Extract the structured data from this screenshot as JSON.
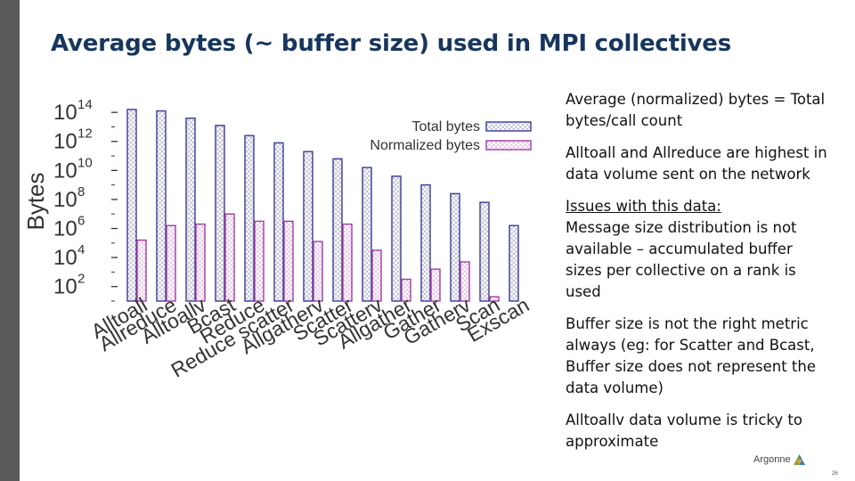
{
  "slide": {
    "title": "Average bytes (~ buffer size) used in MPI collectives",
    "bullets": {
      "b1": "Average (normalized) bytes = Total bytes/call count",
      "b2": "Alltoall and Allreduce are highest in data volume sent on the network",
      "b3_head": "Issues with this data:",
      "b3_body": "Message size distribution is not available – accumulated buffer sizes per collective on a rank is used",
      "b4": "Buffer size is not  the right metric always (eg: for Scatter and Bcast, Buffer size does not represent the data volume)",
      "b5": "Alltoallv data volume is tricky to approximate"
    },
    "logo_text": "Argonne",
    "page_number": "26"
  },
  "colors": {
    "total": "#3a3a99",
    "normalized": "#a23aa2"
  },
  "chart_data": {
    "type": "bar",
    "ylabel": "Bytes",
    "yscale": "log",
    "ylim_exp": [
      1,
      14.5
    ],
    "ytick_exponents": [
      2,
      4,
      6,
      8,
      10,
      12,
      14
    ],
    "categories": [
      "Alltoall",
      "Allreduce",
      "Alltoallv",
      "Bcast",
      "Reduce",
      "Reduce_scatter",
      "Allgatherv",
      "Scatter",
      "Scatterv",
      "Allgather",
      "Gather",
      "Gatherv",
      "Scan",
      "Exscan"
    ],
    "category_labels": [
      "Alltoall",
      "Allreduce",
      "Alltoallv",
      "Bcast",
      "Reduce",
      "Reduce scatter",
      "Allgatherv",
      "Scatter",
      "Scatterv",
      "Allgather",
      "Gather",
      "Gatherv",
      "Scan",
      "Exscan"
    ],
    "series": [
      {
        "name": "Total bytes",
        "exponents": [
          14.2,
          14.1,
          13.6,
          13.1,
          12.4,
          11.9,
          11.3,
          10.8,
          10.2,
          9.6,
          9.0,
          8.4,
          7.8,
          6.2
        ]
      },
      {
        "name": "Normalized bytes",
        "exponents": [
          5.2,
          6.2,
          6.3,
          7.0,
          6.5,
          6.5,
          5.1,
          6.3,
          4.5,
          2.5,
          3.2,
          3.7,
          1.3,
          null
        ]
      }
    ],
    "legend_position": "top-right"
  }
}
